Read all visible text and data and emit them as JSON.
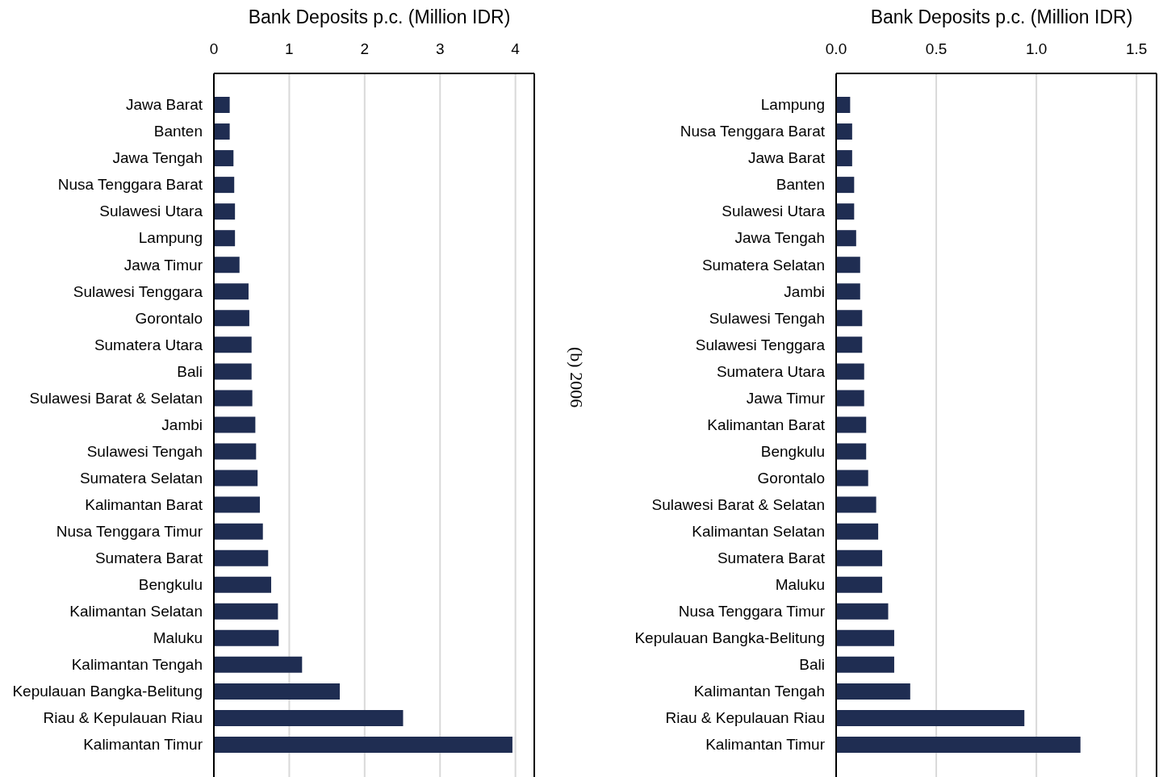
{
  "chart_data": [
    {
      "type": "bar",
      "orientation": "horizontal",
      "xlabel": "Bank Deposits p.c. (Million IDR)",
      "color": "#1f2d52",
      "grid": "x",
      "xlim": [
        0,
        4.25
      ],
      "xticks": [
        0,
        1,
        2,
        3,
        4
      ],
      "categories": [
        "Jawa Barat",
        "Banten",
        "Jawa Tengah",
        "Nusa Tenggara Barat",
        "Sulawesi Utara",
        "Lampung",
        "Jawa Timur",
        "Sulawesi Tenggara",
        "Gorontalo",
        "Sumatera Utara",
        "Bali",
        "Sulawesi Barat & Selatan",
        "Jambi",
        "Sulawesi Tengah",
        "Sumatera Selatan",
        "Kalimantan Barat",
        "Nusa Tenggara Timur",
        "Sumatera Barat",
        "Bengkulu",
        "Kalimantan Selatan",
        "Maluku",
        "Kalimantan Tengah",
        "Kepulauan Bangka-Belitung",
        "Riau & Kepulauan Riau",
        "Kalimantan Timur"
      ],
      "values": [
        0.21,
        0.21,
        0.26,
        0.27,
        0.28,
        0.28,
        0.34,
        0.46,
        0.47,
        0.5,
        0.5,
        0.51,
        0.55,
        0.56,
        0.58,
        0.61,
        0.65,
        0.72,
        0.76,
        0.85,
        0.86,
        1.17,
        1.67,
        2.51,
        3.96
      ]
    },
    {
      "type": "bar",
      "orientation": "horizontal",
      "xlabel": "Bank Deposits p.c. (Million IDR)",
      "color": "#1f2d52",
      "grid": "x",
      "xlim": [
        0,
        1.6
      ],
      "xticks": [
        {
          "value": 0,
          "label": "0.0"
        },
        {
          "value": 0.5,
          "label": "0.5"
        },
        {
          "value": 1,
          "label": "1.0"
        },
        {
          "value": 1.5,
          "label": "1.5"
        }
      ],
      "annotations": [
        "(b) 2006"
      ],
      "categories": [
        "Lampung",
        "Nusa Tenggara Barat",
        "Jawa Barat",
        "Banten",
        "Sulawesi Utara",
        "Jawa Tengah",
        "Sumatera Selatan",
        "Jambi",
        "Sulawesi Tengah",
        "Sulawesi Tenggara",
        "Sumatera Utara",
        "Jawa Timur",
        "Kalimantan Barat",
        "Bengkulu",
        "Gorontalo",
        "Sulawesi Barat & Selatan",
        "Kalimantan Selatan",
        "Sumatera Barat",
        "Maluku",
        "Nusa Tenggara Timur",
        "Kepulauan Bangka-Belitung",
        "Bali",
        "Kalimantan Tengah",
        "Riau & Kepulauan Riau",
        "Kalimantan Timur"
      ],
      "values": [
        0.07,
        0.08,
        0.08,
        0.09,
        0.09,
        0.1,
        0.12,
        0.12,
        0.13,
        0.13,
        0.14,
        0.14,
        0.15,
        0.15,
        0.16,
        0.2,
        0.21,
        0.23,
        0.23,
        0.26,
        0.29,
        0.29,
        0.37,
        0.94,
        1.22
      ]
    }
  ]
}
